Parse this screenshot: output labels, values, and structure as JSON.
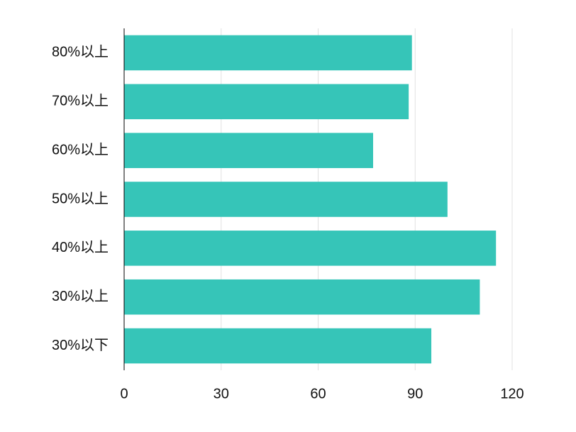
{
  "chart_data": {
    "type": "barh",
    "categories": [
      "80%以上",
      "70%以上",
      "60%以上",
      "50%以上",
      "40%以上",
      "30%以上",
      "30%以下"
    ],
    "values": [
      89,
      88,
      77,
      100,
      115,
      110,
      95
    ],
    "color": "#36c5b8",
    "xlim": [
      0,
      120
    ],
    "xticks": [
      0,
      30,
      60,
      90,
      120
    ],
    "grid": true
  }
}
